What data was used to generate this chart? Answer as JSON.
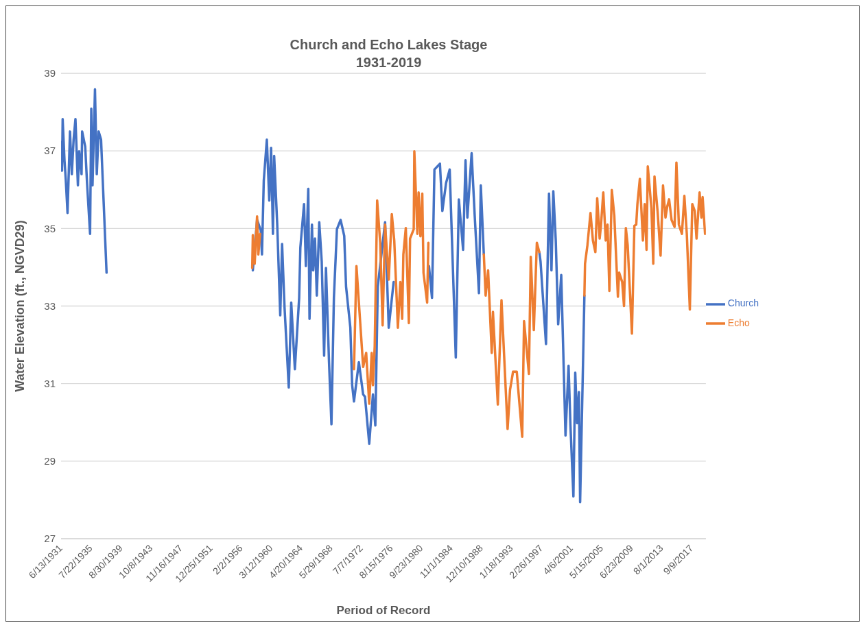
{
  "chart_data": {
    "type": "line",
    "title": "Church and Echo Lakes Stage",
    "subtitle": "1931-2019",
    "xlabel": "Period of Record",
    "ylabel": "Water Elevation (ft., NGVD29)",
    "xlim": [
      "1931-06-13",
      "2019-08-10"
    ],
    "xticks": [
      {
        "value": "1931-06-13",
        "label": "6/13/1931"
      },
      {
        "value": "1935-07-22",
        "label": "7/22/1935"
      },
      {
        "value": "1939-08-30",
        "label": "8/30/1939"
      },
      {
        "value": "1943-10-08",
        "label": "10/8/1943"
      },
      {
        "value": "1947-11-16",
        "label": "11/16/1947"
      },
      {
        "value": "1951-12-25",
        "label": "12/25/1951"
      },
      {
        "value": "1956-02-02",
        "label": "2/2/1956"
      },
      {
        "value": "1960-03-12",
        "label": "3/12/1960"
      },
      {
        "value": "1964-04-20",
        "label": "4/20/1964"
      },
      {
        "value": "1968-05-29",
        "label": "5/29/1968"
      },
      {
        "value": "1972-07-07",
        "label": "7/7/1972"
      },
      {
        "value": "1976-08-15",
        "label": "8/15/1976"
      },
      {
        "value": "1980-09-23",
        "label": "9/23/1980"
      },
      {
        "value": "1984-11-01",
        "label": "11/1/1984"
      },
      {
        "value": "1988-12-10",
        "label": "12/10/1988"
      },
      {
        "value": "1993-01-18",
        "label": "1/18/1993"
      },
      {
        "value": "1997-02-26",
        "label": "2/26/1997"
      },
      {
        "value": "2001-04-06",
        "label": "4/6/2001"
      },
      {
        "value": "2005-05-15",
        "label": "5/15/2005"
      },
      {
        "value": "2009-06-23",
        "label": "6/23/2009"
      },
      {
        "value": "2013-08-01",
        "label": "8/1/2013"
      },
      {
        "value": "2017-09-09",
        "label": "9/9/2017"
      }
    ],
    "ylim": [
      27,
      39
    ],
    "yticks": [
      27,
      29,
      31,
      33,
      35,
      37,
      39
    ],
    "grid": "y",
    "legend": "right",
    "marker": "none",
    "line_style": "solid",
    "series": [
      {
        "name": "Church",
        "color": "#4472c4",
        "x": [
          "1931-07",
          "1931-08",
          "1931-09",
          "1931-12",
          "1932-02",
          "1932-05",
          "1932-09",
          "1932-12",
          "1933-03",
          "1933-06",
          "1933-10",
          "1933-12",
          "1934-04",
          "1934-05",
          "1934-10",
          "1935-01",
          "1935-06",
          "1935-08",
          "1935-10",
          "1936-02",
          "1936-05",
          "1936-08",
          "1936-12",
          "1937-09",
          "1947-01",
          "1957-09",
          "1958-04",
          "1958-10",
          "1958-12",
          "1959-03",
          "1959-08",
          "1959-12",
          "1960-03",
          "1960-06",
          "1960-08",
          "1961-01",
          "1961-06",
          "1961-09",
          "1962-01",
          "1962-08",
          "1962-12",
          "1963-06",
          "1964-01",
          "1964-03",
          "1964-09",
          "1964-12",
          "1965-04",
          "1965-06",
          "1965-10",
          "1965-12",
          "1966-03",
          "1966-06",
          "1966-10",
          "1967-02",
          "1967-06",
          "1967-09",
          "1968-02",
          "1968-06",
          "1968-10",
          "1969-03",
          "1969-09",
          "1970-03",
          "1970-06",
          "1971-01",
          "1971-04",
          "1971-07",
          "1972-03",
          "1972-10",
          "1973-01",
          "1973-08",
          "1974-02",
          "1974-06",
          "1974-10",
          "1975-10",
          "1976-04",
          "1976-12",
          "1979-01",
          "1981-10",
          "1982-03",
          "1982-07",
          "1983-04",
          "1983-08",
          "1984-02",
          "1984-08",
          "1985-06",
          "1985-11",
          "1986-06",
          "1986-10",
          "1987-01",
          "1987-08",
          "1988-01",
          "1988-08",
          "1988-11",
          "1989-04",
          "1993-01",
          "1996-11",
          "1997-01",
          "1997-10",
          "1998-03",
          "1998-07",
          "1998-10",
          "1999-02",
          "1999-06",
          "1999-11",
          "2000-06",
          "2000-11",
          "2001-02",
          "2001-07",
          "2001-10",
          "2002-01",
          "2002-04",
          "2002-06",
          "2002-11",
          "2003-01"
        ],
        "values": [
          37.23,
          36.49,
          37.82,
          36.76,
          36.28,
          35.4,
          37.5,
          36.4,
          37.29,
          37.82,
          36.11,
          36.99,
          36.4,
          37.5,
          37.11,
          36.17,
          34.86,
          38.09,
          36.11,
          38.59,
          36.4,
          37.5,
          37.29,
          33.86,
          null,
          33.92,
          35.22,
          34.95,
          34.33,
          36.23,
          37.29,
          35.72,
          37.08,
          34.86,
          36.87,
          35.1,
          32.76,
          34.6,
          32.97,
          30.9,
          33.09,
          31.37,
          33.21,
          34.51,
          35.63,
          34.03,
          36.02,
          32.67,
          35.1,
          33.92,
          34.74,
          33.27,
          35.16,
          34.15,
          31.72,
          33.98,
          31.55,
          29.95,
          33.21,
          34.98,
          35.22,
          34.81,
          33.5,
          32.44,
          30.96,
          30.54,
          31.55,
          30.72,
          30.66,
          29.45,
          30.72,
          29.92,
          33.5,
          35.16,
          32.44,
          33.62,
          null,
          34.03,
          33.21,
          36.52,
          36.67,
          35.45,
          36.17,
          36.52,
          31.67,
          35.75,
          34.45,
          36.76,
          35.28,
          36.94,
          35.34,
          33.33,
          36.11,
          34.33,
          null,
          34.39,
          34.15,
          32.02,
          35.9,
          33.92,
          35.96,
          34.69,
          32.53,
          33.8,
          29.66,
          31.46,
          29.95,
          28.09,
          31.28,
          29.98,
          30.78,
          27.94,
          31.73,
          33.27
        ]
      },
      {
        "name": "Echo",
        "color": "#ed7d31",
        "x": [
          "1957-08",
          "1957-09",
          "1957-12",
          "1958-04",
          "1958-06",
          "1958-09",
          "1965-01",
          "1971-07",
          "1971-11",
          "1972-06",
          "1972-10",
          "1973-03",
          "1973-08",
          "1973-12",
          "1974-02",
          "1974-05",
          "1974-09",
          "1975-02",
          "1975-06",
          "1975-10",
          "1976-04",
          "1976-09",
          "1977-01",
          "1977-07",
          "1977-11",
          "1978-02",
          "1978-04",
          "1978-08",
          "1979-01",
          "1979-03",
          "1979-09",
          "1979-10",
          "1980-03",
          "1980-05",
          "1980-08",
          "1980-11",
          "1981-01",
          "1981-07",
          "1981-09",
          "1985-01",
          "1989-04",
          "1989-07",
          "1989-11",
          "1990-05",
          "1990-07",
          "1991-03",
          "1991-09",
          "1992-07",
          "1992-11",
          "1993-04",
          "1993-10",
          "1994-07",
          "1994-10",
          "1995-06",
          "1995-09",
          "1996-02",
          "1996-07",
          "1996-11",
          "2000-01",
          "2003-01",
          "2003-02",
          "2003-06",
          "2003-11",
          "2004-03",
          "2004-07",
          "2004-10",
          "2005-02",
          "2005-04",
          "2005-08",
          "2005-12",
          "2006-03",
          "2006-06",
          "2006-10",
          "2007-02",
          "2007-08",
          "2007-10",
          "2008-03",
          "2008-06",
          "2008-09",
          "2008-12",
          "2009-07",
          "2009-11",
          "2010-02",
          "2010-04",
          "2010-08",
          "2011-01",
          "2011-04",
          "2011-07",
          "2011-09",
          "2012-03",
          "2012-06",
          "2012-08",
          "2013-01",
          "2013-06",
          "2013-10",
          "2014-02",
          "2014-05",
          "2014-08",
          "2014-12",
          "2015-05",
          "2015-08",
          "2015-12",
          "2016-05",
          "2016-09",
          "2017-01",
          "2017-06",
          "2017-10",
          "2018-02",
          "2018-05",
          "2018-10",
          "2019-01",
          "2019-03",
          "2019-07"
        ],
        "values": [
          33.98,
          34.83,
          34.09,
          35.31,
          34.33,
          34.86,
          null,
          31.37,
          34.03,
          32.38,
          31.43,
          31.79,
          30.48,
          31.79,
          30.96,
          31.96,
          35.72,
          34.63,
          32.5,
          35.1,
          33.68,
          35.37,
          34.69,
          32.44,
          33.62,
          32.67,
          34.33,
          35.01,
          32.56,
          34.74,
          34.98,
          36.99,
          34.86,
          35.93,
          34.8,
          35.9,
          33.86,
          33.09,
          34.63,
          null,
          34.33,
          33.27,
          33.92,
          31.79,
          32.85,
          30.46,
          33.15,
          29.83,
          30.84,
          31.31,
          31.31,
          29.63,
          32.61,
          31.25,
          34.27,
          32.38,
          34.63,
          34.39,
          null,
          33.27,
          34.09,
          34.57,
          35.4,
          34.69,
          34.39,
          35.78,
          34.74,
          35.04,
          35.93,
          34.69,
          35.1,
          33.39,
          35.99,
          35.34,
          33.24,
          33.86,
          33.62,
          33.0,
          35.01,
          34.57,
          32.29,
          35.07,
          35.1,
          35.63,
          36.28,
          34.69,
          35.63,
          34.45,
          36.6,
          35.52,
          34.09,
          36.34,
          35.45,
          34.3,
          36.11,
          35.28,
          35.57,
          35.75,
          35.22,
          35.04,
          36.7,
          35.1,
          34.86,
          35.84,
          34.86,
          32.91,
          35.63,
          35.45,
          34.74,
          35.93,
          35.28,
          35.81,
          34.86
        ]
      }
    ]
  }
}
